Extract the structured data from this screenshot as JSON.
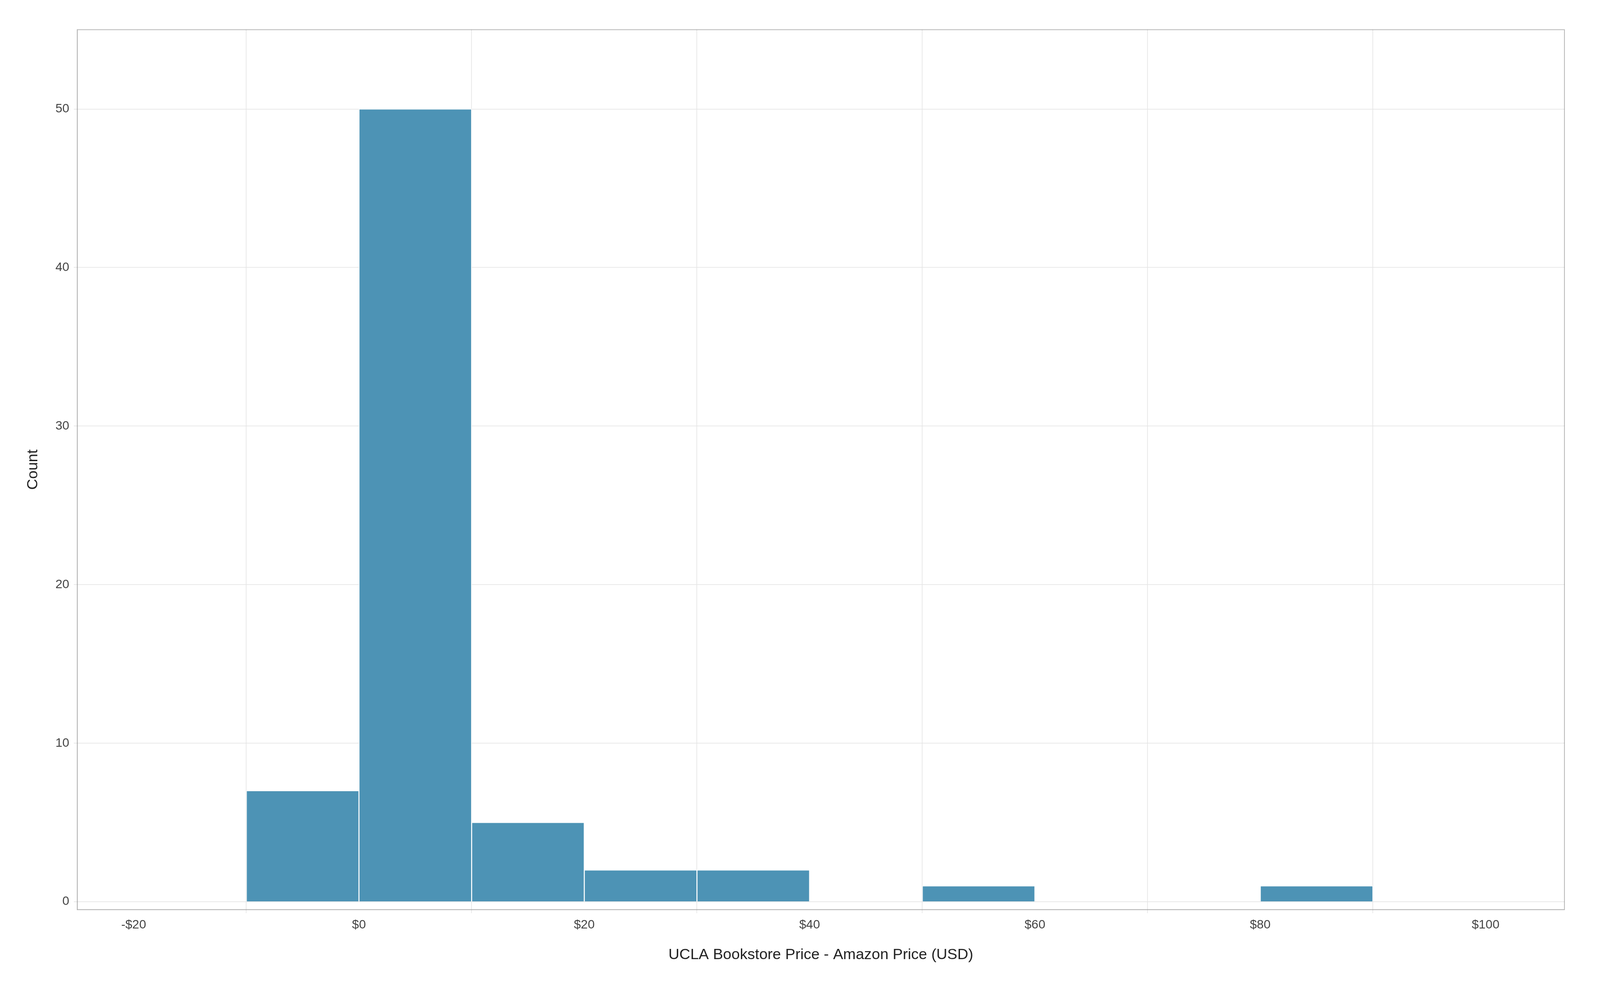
{
  "chart_data": {
    "type": "histogram",
    "bins": [
      -20,
      -10,
      0,
      10,
      20,
      30,
      40,
      50,
      60,
      70,
      80,
      90,
      100,
      110
    ],
    "values": [
      0,
      7,
      50,
      5,
      2,
      2,
      0,
      1,
      0,
      0,
      1,
      0,
      0
    ],
    "color": "#4d93b5",
    "xlim": [
      -25,
      107
    ],
    "ylim": [
      -0.5,
      55
    ],
    "xticks": [
      {
        "value": -20,
        "label": "-$20"
      },
      {
        "value": 0,
        "label": "$0"
      },
      {
        "value": 20,
        "label": "$20"
      },
      {
        "value": 40,
        "label": "$40"
      },
      {
        "value": 60,
        "label": "$60"
      },
      {
        "value": 80,
        "label": "$80"
      },
      {
        "value": 100,
        "label": "$100"
      }
    ],
    "yticks": [
      0,
      10,
      20,
      30,
      40,
      50
    ],
    "xlabel": "UCLA Bookstore Price - Amazon Price (USD)",
    "ylabel": "Count",
    "grid": true
  }
}
